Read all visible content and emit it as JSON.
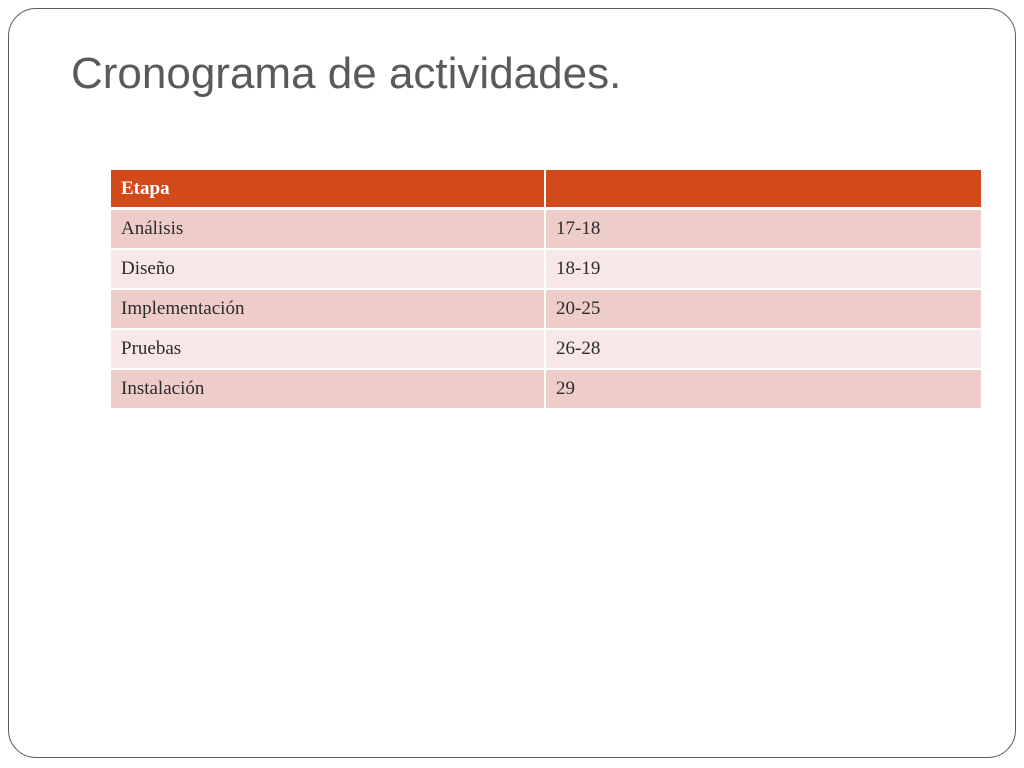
{
  "slide": {
    "title": "Cronograma de actividades."
  },
  "table": {
    "headers": [
      "Etapa",
      ""
    ],
    "rows": [
      {
        "stage": "Análisis",
        "period": "17-18"
      },
      {
        "stage": "Diseño",
        "period": "18-19"
      },
      {
        "stage": "Implementación",
        "period": "20-25"
      },
      {
        "stage": "Pruebas",
        "period": "26-28"
      },
      {
        "stage": "Instalación",
        "period": "29"
      }
    ]
  },
  "colors": {
    "header": "#d2491a",
    "row_odd": "#eecdc9",
    "row_even": "#f7e7e6",
    "title": "#5a5a5a",
    "slide_border": "#5a5a5a"
  }
}
